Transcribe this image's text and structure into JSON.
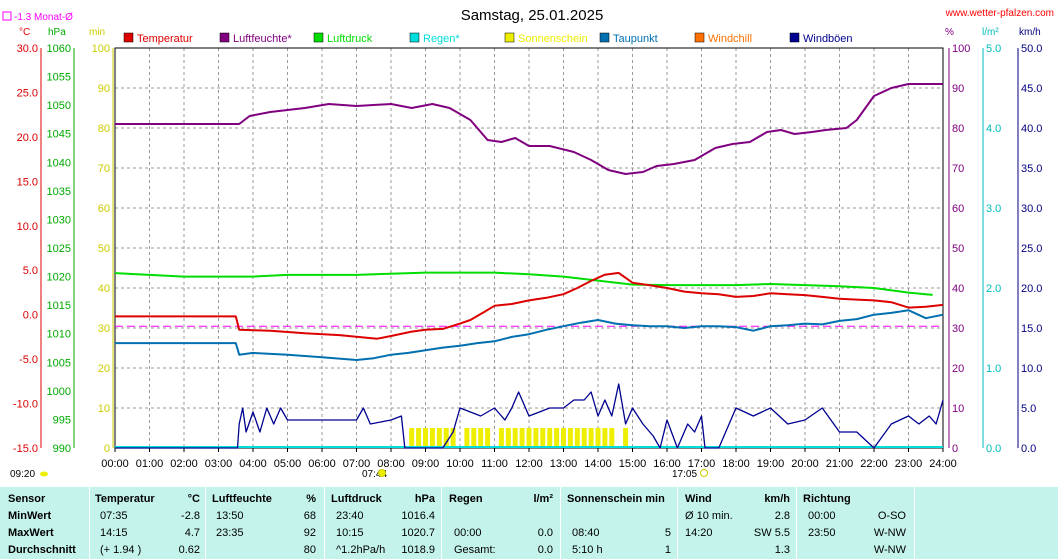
{
  "header": {
    "title": "Samstag, 25.01.2025",
    "site": "www.wetter-pfalzen.com",
    "monthly_avg_label": "-1.3 Monat-Ø"
  },
  "legend": [
    {
      "label": "Temperatur",
      "color": "#dd0000"
    },
    {
      "label": "Luftfeuchte*",
      "color": "#800080"
    },
    {
      "label": "Luftdruck",
      "color": "#00dd00"
    },
    {
      "label": "Regen*",
      "color": "#00dddd"
    },
    {
      "label": "Sonnenschein",
      "color": "#eeee00"
    },
    {
      "label": "Taupunkt",
      "color": "#0070b0"
    },
    {
      "label": "Windchill",
      "color": "#ff7000"
    },
    {
      "label": "Windböen",
      "color": "#000090"
    }
  ],
  "axes": {
    "temp_unit": "°C",
    "press_unit": "hPa",
    "sun_unit": "min",
    "hum_unit": "%",
    "rain_unit": "l/m²",
    "wind_unit": "km/h",
    "temp_ticks": [
      "30.0",
      "25.0",
      "20.0",
      "15.0",
      "10.0",
      "5.0",
      "0.0",
      "-5.0",
      "-10.0",
      "-15.0"
    ],
    "press_ticks": [
      "1060",
      "1055",
      "1050",
      "1045",
      "1040",
      "1035",
      "1030",
      "1025",
      "1020",
      "1015",
      "1010",
      "1005",
      "1000",
      "995",
      "990"
    ],
    "sun_ticks": [
      "100",
      "90",
      "80",
      "70",
      "60",
      "50",
      "40",
      "30",
      "20",
      "10",
      "0"
    ],
    "hum_ticks": [
      "100",
      "90",
      "80",
      "70",
      "60",
      "50",
      "40",
      "30",
      "20",
      "10",
      "0"
    ],
    "rain_ticks": [
      "5.0",
      "4.0",
      "3.0",
      "2.0",
      "1.0",
      "0.0"
    ],
    "wind_ticks": [
      "50.0",
      "45.0",
      "40.0",
      "35.0",
      "30.0",
      "25.0",
      "20.0",
      "15.0",
      "10.0",
      "5.0",
      "0.0"
    ],
    "x_ticks": [
      "00:00",
      "01:00",
      "02:00",
      "03:00",
      "04:00",
      "05:00",
      "06:00",
      "07:00",
      "08:00",
      "09:00",
      "10:00",
      "11:00",
      "12:00",
      "13:00",
      "14:00",
      "15:00",
      "16:00",
      "17:00",
      "18:00",
      "19:00",
      "20:00",
      "21:00",
      "22:00",
      "23:00",
      "24:00"
    ],
    "sunrise": "07:44",
    "sunset": "17:05",
    "update_time": "09:20"
  },
  "chart_data": {
    "type": "line",
    "title": "Samstag, 25.01.2025",
    "x_unit": "hours",
    "x_range": [
      0,
      24
    ],
    "monthly_avg_temp": -1.3,
    "series": [
      {
        "name": "Luftfeuchte*",
        "axis": "hum",
        "color": "#800080",
        "points": [
          [
            0,
            81
          ],
          [
            3.6,
            81
          ],
          [
            3.9,
            83
          ],
          [
            4.5,
            84
          ],
          [
            5.5,
            85
          ],
          [
            6.2,
            86
          ],
          [
            7,
            85.5
          ],
          [
            8,
            86
          ],
          [
            8.6,
            85
          ],
          [
            9.2,
            86
          ],
          [
            9.7,
            85
          ],
          [
            10.3,
            82
          ],
          [
            10.8,
            77
          ],
          [
            11.2,
            76.5
          ],
          [
            11.6,
            77.5
          ],
          [
            12,
            75.5
          ],
          [
            12.6,
            75.5
          ],
          [
            13.3,
            74
          ],
          [
            13.8,
            72
          ],
          [
            14.3,
            69.5
          ],
          [
            14.8,
            68.5
          ],
          [
            15.3,
            69
          ],
          [
            15.7,
            70.5
          ],
          [
            16.2,
            71
          ],
          [
            16.8,
            72
          ],
          [
            17.4,
            75
          ],
          [
            17.9,
            76
          ],
          [
            18.4,
            76.5
          ],
          [
            18.9,
            79
          ],
          [
            19.3,
            79.5
          ],
          [
            19.7,
            78.5
          ],
          [
            20.2,
            79
          ],
          [
            20.6,
            79.5
          ],
          [
            21.2,
            80
          ],
          [
            21.5,
            82
          ],
          [
            22,
            88
          ],
          [
            22.5,
            90
          ],
          [
            23,
            91
          ],
          [
            23.5,
            91
          ],
          [
            24,
            91
          ]
        ]
      },
      {
        "name": "Luftdruck",
        "axis": "press",
        "color": "#00dd00",
        "points": [
          [
            0,
            1020.6
          ],
          [
            1,
            1020.3
          ],
          [
            2,
            1020
          ],
          [
            3,
            1020
          ],
          [
            4,
            1020
          ],
          [
            5,
            1020.3
          ],
          [
            6,
            1020.3
          ],
          [
            7,
            1020.3
          ],
          [
            8,
            1020.5
          ],
          [
            9,
            1020.7
          ],
          [
            10,
            1020.7
          ],
          [
            11,
            1020.7
          ],
          [
            12,
            1020.4
          ],
          [
            13,
            1020
          ],
          [
            14,
            1019.3
          ],
          [
            15,
            1018.6
          ],
          [
            16,
            1018.5
          ],
          [
            17,
            1018.5
          ],
          [
            18,
            1018.5
          ],
          [
            19,
            1018.7
          ],
          [
            20,
            1018.5
          ],
          [
            21,
            1018.3
          ],
          [
            22,
            1018
          ],
          [
            23,
            1017.2
          ],
          [
            23.7,
            1016.8
          ]
        ]
      },
      {
        "name": "Temperatur",
        "axis": "temp",
        "color": "#dd0000",
        "points": [
          [
            0,
            -0.2
          ],
          [
            3.5,
            -0.2
          ],
          [
            3.6,
            -1.7
          ],
          [
            4.5,
            -1.8
          ],
          [
            5.5,
            -2.1
          ],
          [
            6.5,
            -2.3
          ],
          [
            7.6,
            -2.7
          ],
          [
            8,
            -2.4
          ],
          [
            8.6,
            -1.9
          ],
          [
            9,
            -1.7
          ],
          [
            9.5,
            -1.6
          ],
          [
            10,
            -1.0
          ],
          [
            10.3,
            -0.6
          ],
          [
            10.7,
            0.3
          ],
          [
            11,
            1.0
          ],
          [
            11.5,
            1.2
          ],
          [
            12,
            1.6
          ],
          [
            12.5,
            1.9
          ],
          [
            13,
            2.3
          ],
          [
            13.4,
            3.0
          ],
          [
            13.8,
            3.8
          ],
          [
            14.2,
            4.5
          ],
          [
            14.6,
            4.7
          ],
          [
            15,
            3.6
          ],
          [
            15.5,
            3.3
          ],
          [
            16,
            3.0
          ],
          [
            16.5,
            2.6
          ],
          [
            17,
            2.4
          ],
          [
            17.5,
            2.3
          ],
          [
            18,
            2.0
          ],
          [
            18.5,
            2.1
          ],
          [
            19,
            2.4
          ],
          [
            19.5,
            2.3
          ],
          [
            20,
            2.2
          ],
          [
            20.5,
            2.0
          ],
          [
            21,
            1.8
          ],
          [
            21.5,
            1.7
          ],
          [
            22,
            1.6
          ],
          [
            22.5,
            1.4
          ],
          [
            23,
            0.8
          ],
          [
            23.5,
            0.9
          ],
          [
            24,
            1.1
          ]
        ]
      },
      {
        "name": "Taupunkt",
        "axis": "temp",
        "color": "#0070b0",
        "points": [
          [
            0,
            -3.2
          ],
          [
            3.5,
            -3.2
          ],
          [
            3.6,
            -4.5
          ],
          [
            4,
            -4.3
          ],
          [
            5,
            -4.5
          ],
          [
            6,
            -4.8
          ],
          [
            7,
            -5.1
          ],
          [
            7.5,
            -4.9
          ],
          [
            8,
            -4.5
          ],
          [
            8.5,
            -4.3
          ],
          [
            9,
            -4.0
          ],
          [
            9.5,
            -3.7
          ],
          [
            10,
            -3.5
          ],
          [
            10.5,
            -3.2
          ],
          [
            11,
            -3.0
          ],
          [
            11.5,
            -2.5
          ],
          [
            12,
            -2.2
          ],
          [
            12.5,
            -1.7
          ],
          [
            13,
            -1.3
          ],
          [
            13.5,
            -0.9
          ],
          [
            14,
            -0.6
          ],
          [
            14.5,
            -1.0
          ],
          [
            15,
            -1.2
          ],
          [
            15.5,
            -1.3
          ],
          [
            16,
            -1.3
          ],
          [
            16.5,
            -1.5
          ],
          [
            17,
            -1.3
          ],
          [
            17.5,
            -1.3
          ],
          [
            18,
            -1.4
          ],
          [
            18.5,
            -1.8
          ],
          [
            19,
            -1.3
          ],
          [
            19.5,
            -1.2
          ],
          [
            20,
            -1.0
          ],
          [
            20.5,
            -1.1
          ],
          [
            21,
            -0.7
          ],
          [
            21.5,
            -0.5
          ],
          [
            22,
            0
          ],
          [
            22.5,
            0.2
          ],
          [
            23,
            0.5
          ],
          [
            23.5,
            -0.4
          ],
          [
            24,
            0
          ]
        ]
      },
      {
        "name": "Windböen",
        "axis": "wind",
        "color": "#000090",
        "points": [
          [
            0,
            0
          ],
          [
            3.55,
            0
          ],
          [
            3.6,
            3
          ],
          [
            3.7,
            5
          ],
          [
            3.8,
            2
          ],
          [
            4,
            4.5
          ],
          [
            4.2,
            2
          ],
          [
            4.4,
            5
          ],
          [
            4.6,
            3
          ],
          [
            4.8,
            5
          ],
          [
            5,
            3.5
          ],
          [
            6,
            3.5
          ],
          [
            7,
            3.5
          ],
          [
            7.2,
            5
          ],
          [
            7.4,
            3
          ],
          [
            8,
            3.5
          ],
          [
            8.3,
            4
          ],
          [
            8.4,
            0
          ],
          [
            8.8,
            0
          ],
          [
            9.5,
            0
          ],
          [
            9.8,
            2
          ],
          [
            10,
            5
          ],
          [
            10.3,
            4.5
          ],
          [
            10.6,
            4
          ],
          [
            11,
            5
          ],
          [
            11.3,
            3.5
          ],
          [
            11.5,
            5
          ],
          [
            11.7,
            7
          ],
          [
            12,
            4
          ],
          [
            12.3,
            4.5
          ],
          [
            12.6,
            5
          ],
          [
            13,
            5
          ],
          [
            13.3,
            6
          ],
          [
            13.6,
            6
          ],
          [
            13.8,
            7
          ],
          [
            14,
            4
          ],
          [
            14.2,
            6
          ],
          [
            14.4,
            4
          ],
          [
            14.6,
            8
          ],
          [
            14.8,
            3
          ],
          [
            15,
            5
          ],
          [
            15.3,
            3
          ],
          [
            15.6,
            1.5
          ],
          [
            15.8,
            0
          ],
          [
            16,
            3.5
          ],
          [
            16.3,
            0
          ],
          [
            16.6,
            3
          ],
          [
            16.8,
            2
          ],
          [
            17,
            4
          ],
          [
            17.1,
            0
          ],
          [
            17.5,
            0
          ],
          [
            18,
            5
          ],
          [
            18.5,
            4
          ],
          [
            19,
            5
          ],
          [
            19.5,
            3
          ],
          [
            20,
            3.5
          ],
          [
            20.5,
            5
          ],
          [
            21,
            2
          ],
          [
            21.5,
            2
          ],
          [
            22,
            0
          ],
          [
            22.5,
            3
          ],
          [
            23,
            4
          ],
          [
            23.3,
            3
          ],
          [
            23.6,
            4
          ],
          [
            23.8,
            3
          ],
          [
            24,
            6
          ]
        ]
      }
    ],
    "sunshine_minutes": [
      [
        8.6,
        5
      ],
      [
        8.8,
        5
      ],
      [
        9.0,
        5
      ],
      [
        9.2,
        5
      ],
      [
        9.4,
        5
      ],
      [
        9.6,
        5
      ],
      [
        9.8,
        5
      ],
      [
        10.2,
        5
      ],
      [
        10.4,
        5
      ],
      [
        10.6,
        5
      ],
      [
        10.8,
        5
      ],
      [
        11.2,
        5
      ],
      [
        11.4,
        5
      ],
      [
        11.6,
        5
      ],
      [
        11.8,
        5
      ],
      [
        12.0,
        5
      ],
      [
        12.2,
        5
      ],
      [
        12.4,
        5
      ],
      [
        12.6,
        5
      ],
      [
        12.8,
        5
      ],
      [
        13.0,
        5
      ],
      [
        13.2,
        5
      ],
      [
        13.4,
        5
      ],
      [
        13.6,
        5
      ],
      [
        13.8,
        5
      ],
      [
        14.0,
        5
      ],
      [
        14.2,
        5
      ],
      [
        14.4,
        5
      ],
      [
        14.8,
        5
      ]
    ],
    "rain_total": 0.0
  },
  "stats": {
    "headers": {
      "sensor": "Sensor",
      "temp": "Temperatur",
      "temp_unit": "°C",
      "hum": "Luftfeuchte",
      "hum_unit": "%",
      "press": "Luftdruck",
      "press_unit": "hPa",
      "rain": "Regen",
      "rain_unit": "l/m²",
      "sun": "Sonnenschein min",
      "wind": "Wind",
      "wind_unit": "km/h",
      "dir": "Richtung"
    },
    "rows": [
      {
        "label": "MinWert",
        "temp_time": "07:35",
        "temp_val": "-2.8",
        "hum_time": "13:50",
        "hum_val": "68",
        "press_time": "23:40",
        "press_val": "1016.4",
        "rain_time": "",
        "rain_val": "",
        "sun_time": "",
        "sun_val": "",
        "wind_time": "Ø 10 min.",
        "wind_val": "2.8",
        "dir_time": "00:00",
        "dir_val": "O-SO"
      },
      {
        "label": "MaxWert",
        "temp_time": "14:15",
        "temp_val": "4.7",
        "hum_time": "23:35",
        "hum_val": "92",
        "press_time": "10:15",
        "press_val": "1020.7",
        "rain_time": "00:00",
        "rain_val": "0.0",
        "sun_time": "08:40",
        "sun_val": "5",
        "wind_time": "14:20",
        "wind_val": "SW 5.5",
        "dir_time": "23:50",
        "dir_val": "W-NW"
      },
      {
        "label": "Durchschnitt",
        "temp_time": "(+ 1.94 )",
        "temp_val": "0.62",
        "hum_time": "",
        "hum_val": "80",
        "press_time": "^1.2hPa/h",
        "press_val": "1018.9",
        "rain_time": "Gesamt:",
        "rain_val": "0.0",
        "sun_time": "5:10 h",
        "sun_val": "1",
        "wind_time": "",
        "wind_val": "1.3",
        "dir_time": "",
        "dir_val": "W-NW"
      }
    ]
  }
}
